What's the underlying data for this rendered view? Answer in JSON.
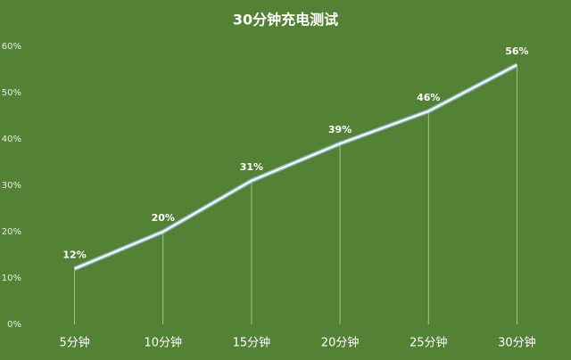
{
  "chart_data": {
    "type": "line",
    "title": "30分钟充电测试",
    "categories": [
      "5分钟",
      "10分钟",
      "15分钟",
      "20分钟",
      "25分钟",
      "30分钟"
    ],
    "values": [
      12,
      20,
      31,
      39,
      46,
      56
    ],
    "value_labels": [
      "12%",
      "20%",
      "31%",
      "39%",
      "46%",
      "56%"
    ],
    "color": "#ffffff",
    "ylim": [
      0,
      60
    ],
    "yticks": [
      {
        "value": 0,
        "label": "0%"
      },
      {
        "value": 10,
        "label": "10%"
      },
      {
        "value": 20,
        "label": "20%"
      },
      {
        "value": 30,
        "label": "30%"
      },
      {
        "value": 40,
        "label": "40%"
      },
      {
        "value": 50,
        "label": "50%"
      },
      {
        "value": 60,
        "label": "60%"
      }
    ],
    "grid": false
  }
}
